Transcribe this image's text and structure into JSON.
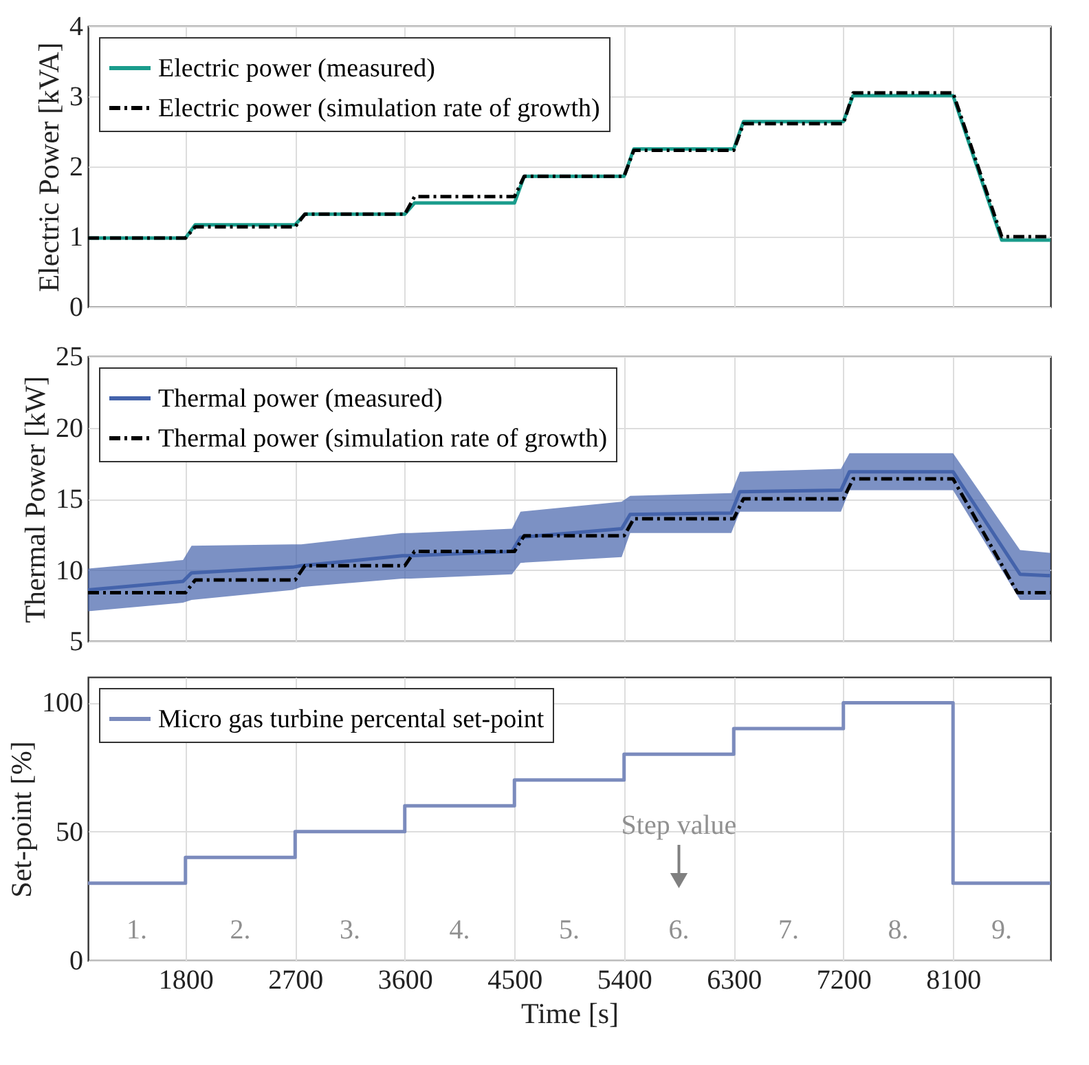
{
  "chart_data": [
    {
      "type": "line",
      "ylabel": "Electric Power [kVA]",
      "xlim": [
        1000,
        8900
      ],
      "xticks": [
        1800,
        2700,
        3600,
        4500,
        5400,
        6300,
        7200,
        8100
      ],
      "ylim": [
        0,
        4
      ],
      "yticks": [
        0,
        1,
        2,
        3,
        4
      ],
      "grid": true,
      "legend": "top left",
      "tick_labels": "y",
      "series": [
        {
          "name": "Electric power (measured)",
          "color": "#1a9c8c",
          "line_style": "solid",
          "x": [
            1000,
            1800,
            1880,
            2700,
            2780,
            3600,
            3680,
            4500,
            4580,
            5400,
            5480,
            6300,
            6380,
            7200,
            7280,
            8100,
            8500,
            8900
          ],
          "values": [
            0.98,
            0.98,
            1.17,
            1.17,
            1.32,
            1.32,
            1.48,
            1.48,
            1.86,
            1.86,
            2.25,
            2.25,
            2.64,
            2.64,
            3.01,
            3.01,
            0.95,
            0.95
          ]
        },
        {
          "name": "Electric power (simulation rate of growth)",
          "color": "#000000",
          "line_style": "dashed",
          "x": [
            1000,
            1800,
            1880,
            2700,
            2780,
            3600,
            3680,
            4500,
            4580,
            5400,
            5480,
            6300,
            6380,
            7200,
            7280,
            8100,
            8500,
            8900
          ],
          "values": [
            0.98,
            0.98,
            1.14,
            1.14,
            1.32,
            1.32,
            1.57,
            1.57,
            1.86,
            1.86,
            2.23,
            2.23,
            2.61,
            2.61,
            3.05,
            3.05,
            1.0,
            1.0
          ]
        }
      ]
    },
    {
      "type": "line",
      "ylabel": "Thermal Power [kW]",
      "xlim": [
        1000,
        8900
      ],
      "xticks": [
        1800,
        2700,
        3600,
        4500,
        5400,
        6300,
        7200,
        8100
      ],
      "ylim": [
        5,
        25
      ],
      "yticks": [
        5,
        10,
        15,
        20,
        25
      ],
      "grid": true,
      "legend": "top left",
      "tick_labels": "y",
      "series": [
        {
          "name": "Thermal power (measured)",
          "color": "#4463ab",
          "line_style": "solid",
          "x": [
            1000,
            1780,
            1850,
            2680,
            2750,
            3580,
            3650,
            4480,
            4550,
            5380,
            5450,
            6280,
            6350,
            7180,
            7250,
            8100,
            8650,
            8900
          ],
          "values": [
            8.6,
            9.2,
            9.8,
            10.2,
            10.3,
            11.0,
            11.0,
            11.3,
            12.3,
            12.9,
            13.9,
            14.0,
            15.5,
            15.6,
            16.9,
            16.9,
            9.7,
            9.6
          ],
          "lower": [
            7.1,
            7.7,
            7.9,
            8.6,
            8.8,
            9.4,
            9.4,
            9.7,
            10.5,
            10.9,
            12.6,
            12.6,
            14.1,
            14.1,
            15.6,
            15.6,
            7.9,
            7.9
          ],
          "upper": [
            10.1,
            10.7,
            11.7,
            11.8,
            11.8,
            12.6,
            12.6,
            12.9,
            14.1,
            14.8,
            15.2,
            15.4,
            16.9,
            17.1,
            18.2,
            18.2,
            11.4,
            11.2
          ]
        },
        {
          "name": "Thermal power (simulation rate of growth)",
          "color": "#000000",
          "line_style": "dashed",
          "x": [
            1000,
            1800,
            1880,
            2700,
            2780,
            3600,
            3680,
            4500,
            4580,
            5400,
            5480,
            6300,
            6380,
            7200,
            7280,
            8100,
            8630,
            8900
          ],
          "values": [
            8.4,
            8.4,
            9.3,
            9.3,
            10.3,
            10.3,
            11.3,
            11.3,
            12.4,
            12.4,
            13.6,
            13.6,
            15.0,
            15.0,
            16.4,
            16.4,
            8.4,
            8.4
          ]
        }
      ]
    },
    {
      "type": "step",
      "ylabel": "Set-point [%]",
      "xlabel": "Time [s]",
      "xlim": [
        1000,
        8900
      ],
      "xticks": [
        1800,
        2700,
        3600,
        4500,
        5400,
        6300,
        7200,
        8100
      ],
      "ylim": [
        0,
        110
      ],
      "yticks": [
        0,
        50,
        100
      ],
      "grid": true,
      "legend": "top left",
      "series": [
        {
          "name": "Micro gas turbine percental set-point",
          "color": "#7b8bbd",
          "line_style": "solid",
          "x": [
            1000,
            1800,
            2700,
            3600,
            4500,
            5400,
            6300,
            7200,
            8100,
            8900
          ],
          "values": [
            30,
            40,
            50,
            60,
            70,
            80,
            90,
            100,
            30,
            30
          ]
        }
      ],
      "annotations": [
        "1.",
        "2.",
        "3.",
        "4.",
        "5.",
        "6.",
        "7.",
        "8.",
        "9.",
        "Step value"
      ]
    }
  ]
}
